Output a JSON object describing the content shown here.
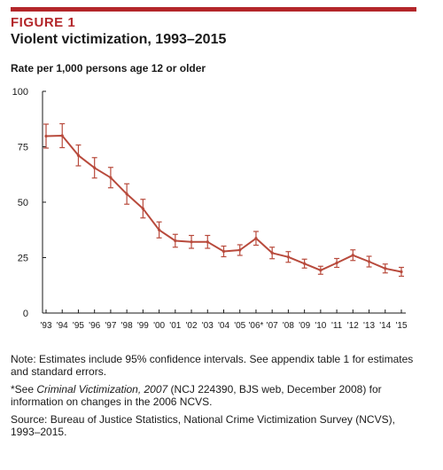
{
  "figure": {
    "label": "FIGURE 1",
    "title": "Violent victimization, 1993–2015",
    "subtitle": "Rate per 1,000 persons age 12 or older"
  },
  "colors": {
    "accent": "#b3262a",
    "line": "#b84a3c",
    "axis": "#1a1a1a"
  },
  "chart_data": {
    "type": "line",
    "title": "Violent victimization, 1993–2015",
    "ylabel": "Rate per 1,000 persons age 12 or older",
    "ylim": [
      0,
      100
    ],
    "yticks": [
      0,
      25,
      50,
      75,
      100
    ],
    "grid": false,
    "categories": [
      "'93",
      "'94",
      "'95",
      "'96",
      "'97",
      "'98",
      "'99",
      "'00",
      "'01",
      "'02",
      "'03",
      "'04",
      "'05",
      "'06*",
      "'07",
      "'08",
      "'09",
      "'10",
      "'11",
      "'12",
      "'13",
      "'14",
      "'15"
    ],
    "series": [
      {
        "values": [
          79.8,
          80.0,
          71.1,
          65.5,
          61.1,
          53.7,
          47.1,
          37.5,
          32.6,
          32.1,
          32.1,
          27.8,
          28.4,
          33.7,
          27.1,
          25.3,
          22.3,
          19.3,
          22.6,
          26.1,
          23.2,
          20.1,
          18.6
        ],
        "error": [
          5.4,
          5.4,
          4.7,
          4.6,
          4.6,
          4.6,
          4.2,
          3.6,
          2.9,
          2.9,
          2.9,
          2.4,
          2.4,
          3.1,
          2.6,
          2.4,
          2.0,
          1.8,
          2.0,
          2.4,
          2.4,
          2.0,
          2.0
        ]
      }
    ]
  },
  "notes": {
    "note1": "Note: Estimates include 95% confidence intervals. See appendix table 1 for estimates and standard errors.",
    "note2_prefix": "*See ",
    "note2_italic": "Criminal Victimization, 2007",
    "note2_suffix": " (NCJ 224390, BJS web, December 2008) for information on changes in the 2006 NCVS.",
    "source": "Source: Bureau of Justice Statistics, National Crime Victimization Survey (NCVS), 1993–2015."
  }
}
